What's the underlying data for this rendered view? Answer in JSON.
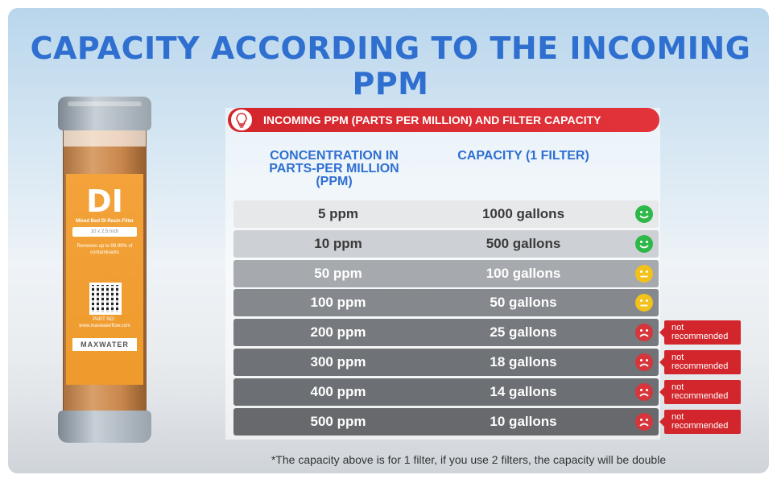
{
  "title": "CAPACITY ACCORDING TO THE INCOMING PPM",
  "banner": {
    "text": "INCOMING PPM (PARTS PER MILLION) AND FILTER CAPACITY",
    "icon": "lightbulb-icon"
  },
  "columns": {
    "concentration": "CONCENTRATION IN PARTS-PER MILLION (PPM)",
    "capacity": "CAPACITY (1 FILTER)"
  },
  "rows": [
    {
      "ppm": "5 ppm",
      "capacity": "1000 gallons",
      "rating": "good",
      "note": ""
    },
    {
      "ppm": "10 ppm",
      "capacity": "500 gallons",
      "rating": "good",
      "note": ""
    },
    {
      "ppm": "50 ppm",
      "capacity": "100 gallons",
      "rating": "neutral",
      "note": ""
    },
    {
      "ppm": "100 ppm",
      "capacity": "50 gallons",
      "rating": "neutral",
      "note": ""
    },
    {
      "ppm": "200 ppm",
      "capacity": "25 gallons",
      "rating": "bad",
      "note": "not recommended"
    },
    {
      "ppm": "300 ppm",
      "capacity": "18 gallons",
      "rating": "bad",
      "note": "not recommended"
    },
    {
      "ppm": "400 ppm",
      "capacity": "14 gallons",
      "rating": "bad",
      "note": "not recommended"
    },
    {
      "ppm": "500 ppm",
      "capacity": "10 gallons",
      "rating": "bad",
      "note": "not recommended"
    }
  ],
  "footnote": "*The capacity above is for 1 filter, if you use 2 filters, the capacity will be double",
  "product": {
    "logo": "DI",
    "subtitle": "Mixed Bed DI Resin Filter",
    "size": "10 x 2.5 Inch",
    "claim": "Removes up to 99.99% of contaminants",
    "part_no": "PART NO :",
    "website": "www.maxwaterflow.com",
    "brand": "MAXWATER"
  },
  "colors": {
    "title": "#2f6fd0",
    "banner": "#d3262c",
    "good": "#2fb84a",
    "neutral": "#f2c21b",
    "bad": "#d6363b"
  }
}
